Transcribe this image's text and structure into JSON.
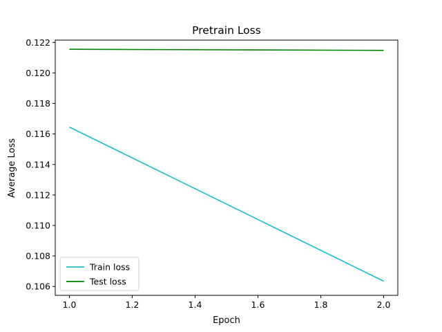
{
  "chart_data": {
    "type": "line",
    "title": "Pretrain Loss",
    "xlabel": "Epoch",
    "ylabel": "Average Loss",
    "xlim": [
      0.955,
      2.045
    ],
    "ylim": [
      0.10542,
      0.12215
    ],
    "xticks": [
      1.0,
      1.2,
      1.4,
      1.6,
      1.8,
      2.0
    ],
    "xtick_labels": [
      "1.0",
      "1.2",
      "1.4",
      "1.6",
      "1.8",
      "2.0"
    ],
    "yticks": [
      0.106,
      0.108,
      0.11,
      0.112,
      0.114,
      0.116,
      0.118,
      0.12,
      0.122
    ],
    "ytick_labels": [
      "0.106",
      "0.108",
      "0.110",
      "0.112",
      "0.114",
      "0.116",
      "0.118",
      "0.120",
      "0.122"
    ],
    "grid": false,
    "legend_position": "lower-left",
    "series": [
      {
        "name": "Train loss",
        "color": "#17becf",
        "x": [
          1.0,
          2.0
        ],
        "y": [
          0.11645,
          0.10635
        ]
      },
      {
        "name": "Test loss",
        "color": "#008000",
        "x": [
          1.0,
          2.0
        ],
        "y": [
          0.12155,
          0.12148
        ]
      }
    ]
  }
}
